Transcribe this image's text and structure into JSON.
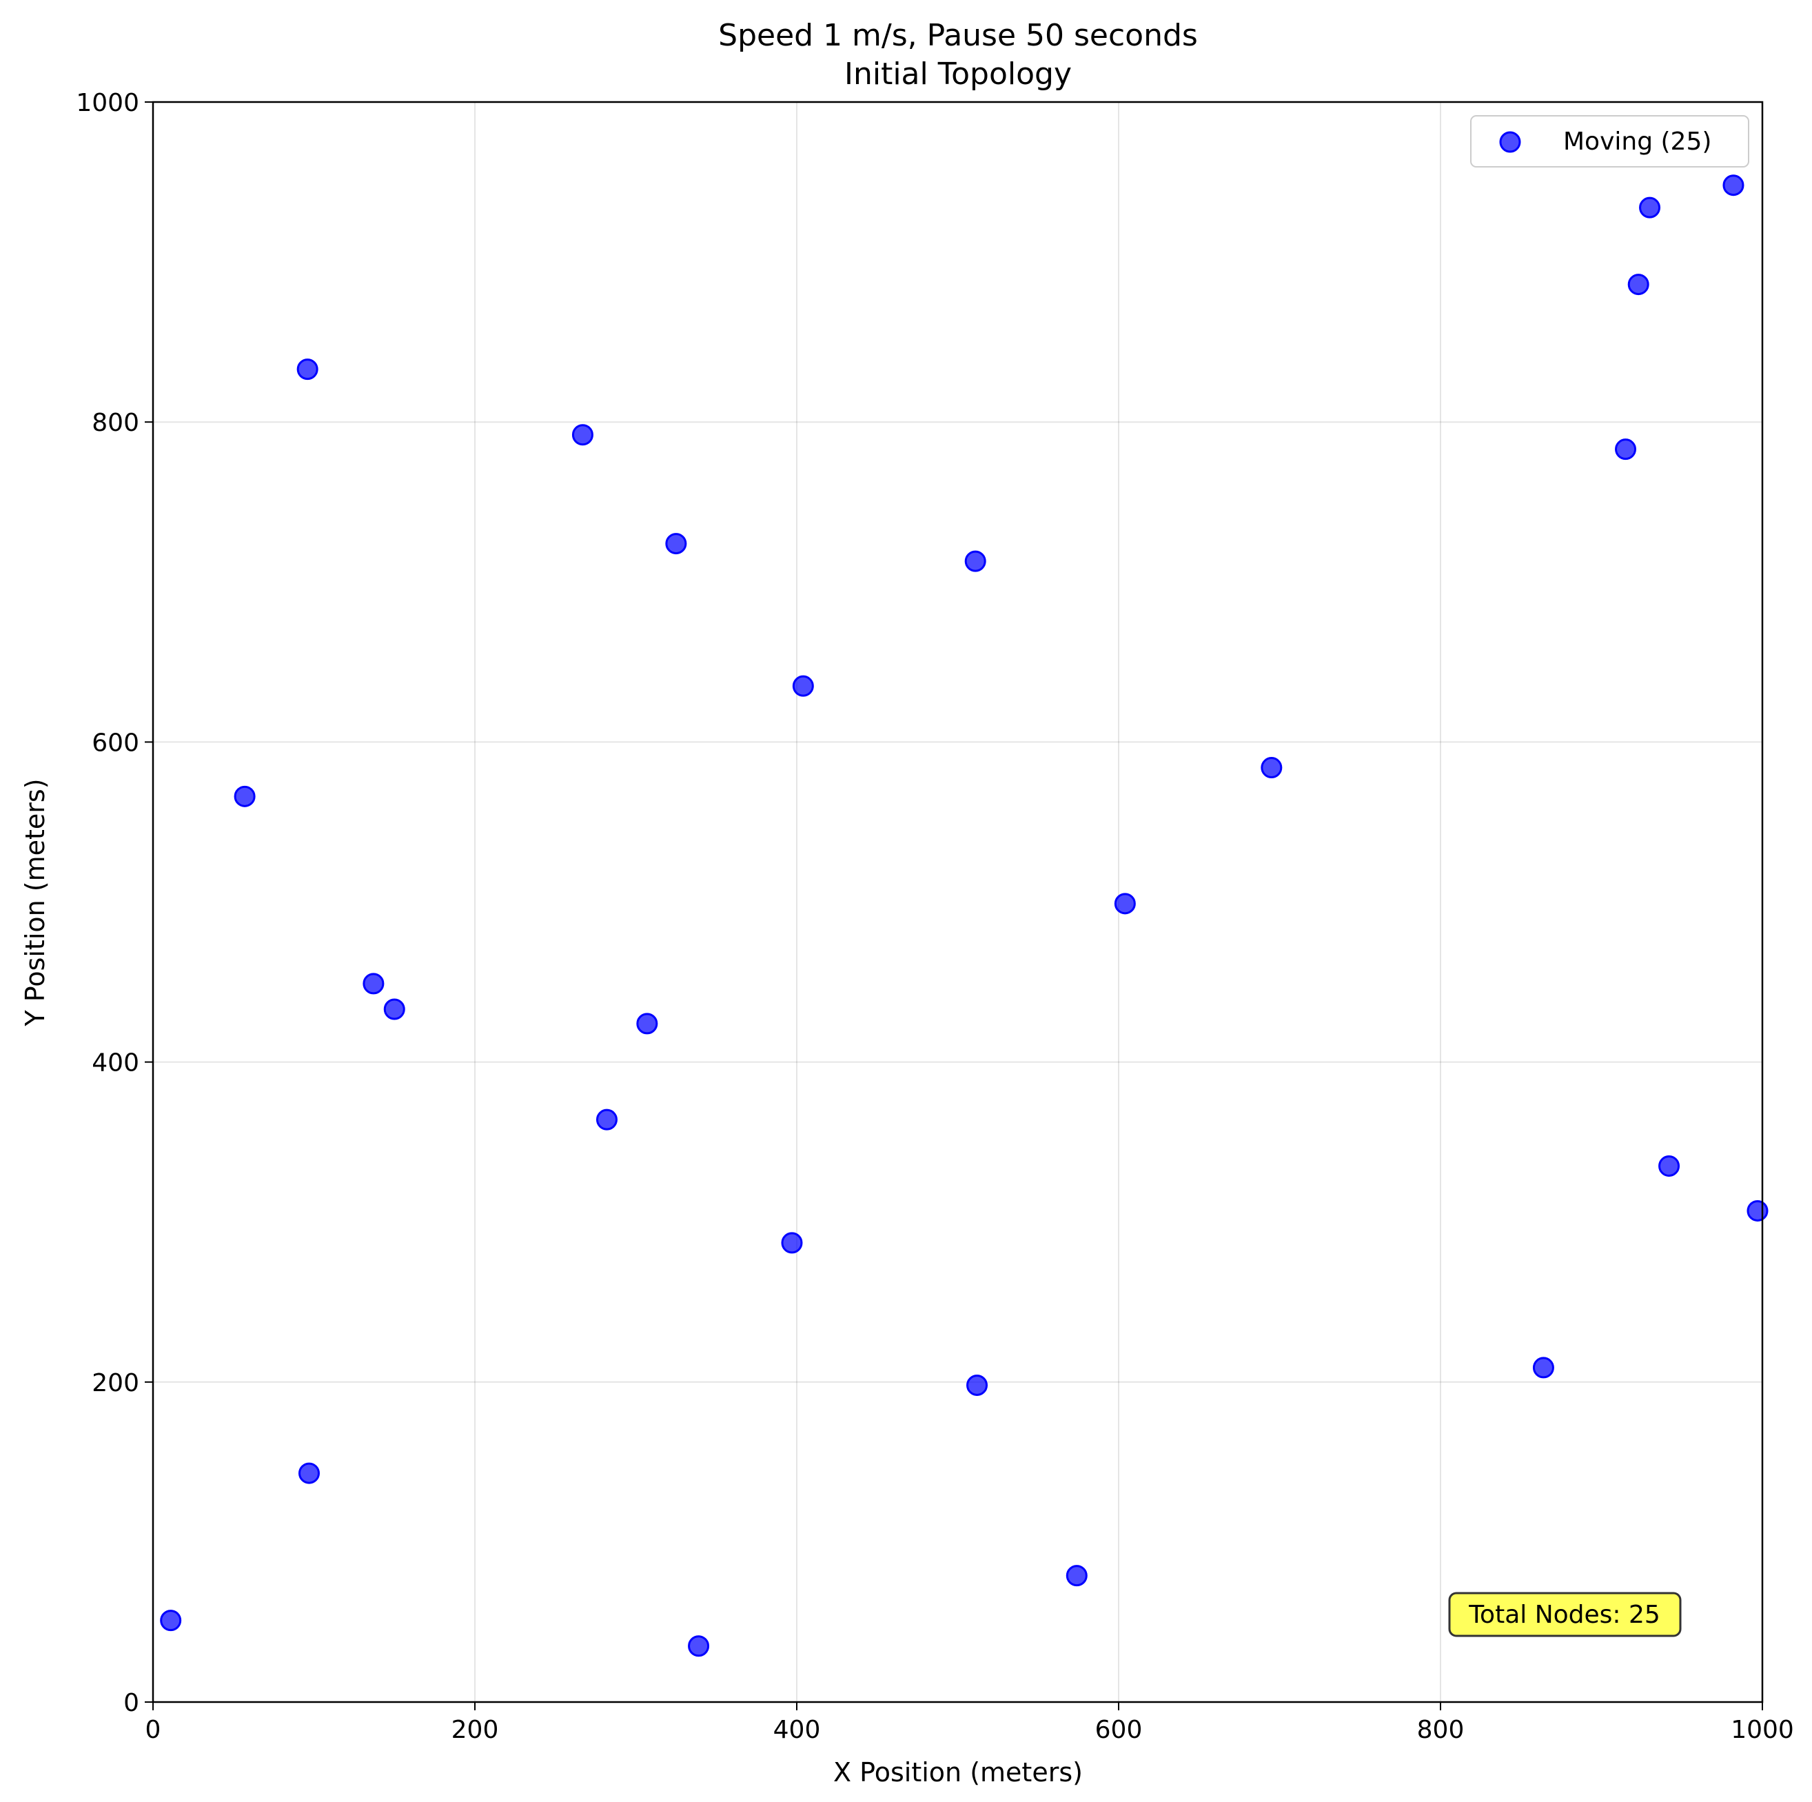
{
  "chart_data": {
    "type": "scatter",
    "title_line1": "Speed 1 m/s, Pause 50 seconds",
    "title_line2": "Initial Topology",
    "xlabel": "X Position (meters)",
    "ylabel": "Y Position (meters)",
    "xlim": [
      0,
      1000
    ],
    "ylim": [
      0,
      1000
    ],
    "xticks": [
      0,
      200,
      400,
      600,
      800,
      1000
    ],
    "yticks": [
      0,
      200,
      400,
      600,
      800,
      1000
    ],
    "grid": true,
    "legend_placement": "top-right",
    "series": [
      {
        "name": "Moving (25)",
        "color": "#0000ff",
        "x": [
          96,
          267,
          325,
          511,
          404,
          915,
          923,
          930,
          982,
          57,
          695,
          604,
          137,
          150,
          307,
          282,
          942,
          997,
          397,
          512,
          864,
          97,
          574,
          11,
          339
        ],
        "y": [
          833,
          792,
          724,
          713,
          635,
          783,
          886,
          934,
          948,
          566,
          584,
          499,
          449,
          433,
          424,
          364,
          335,
          307,
          287,
          198,
          209,
          143,
          79,
          51,
          35
        ]
      }
    ],
    "annotation": "Total Nodes: 25",
    "annotation_color": "#ffff33"
  }
}
